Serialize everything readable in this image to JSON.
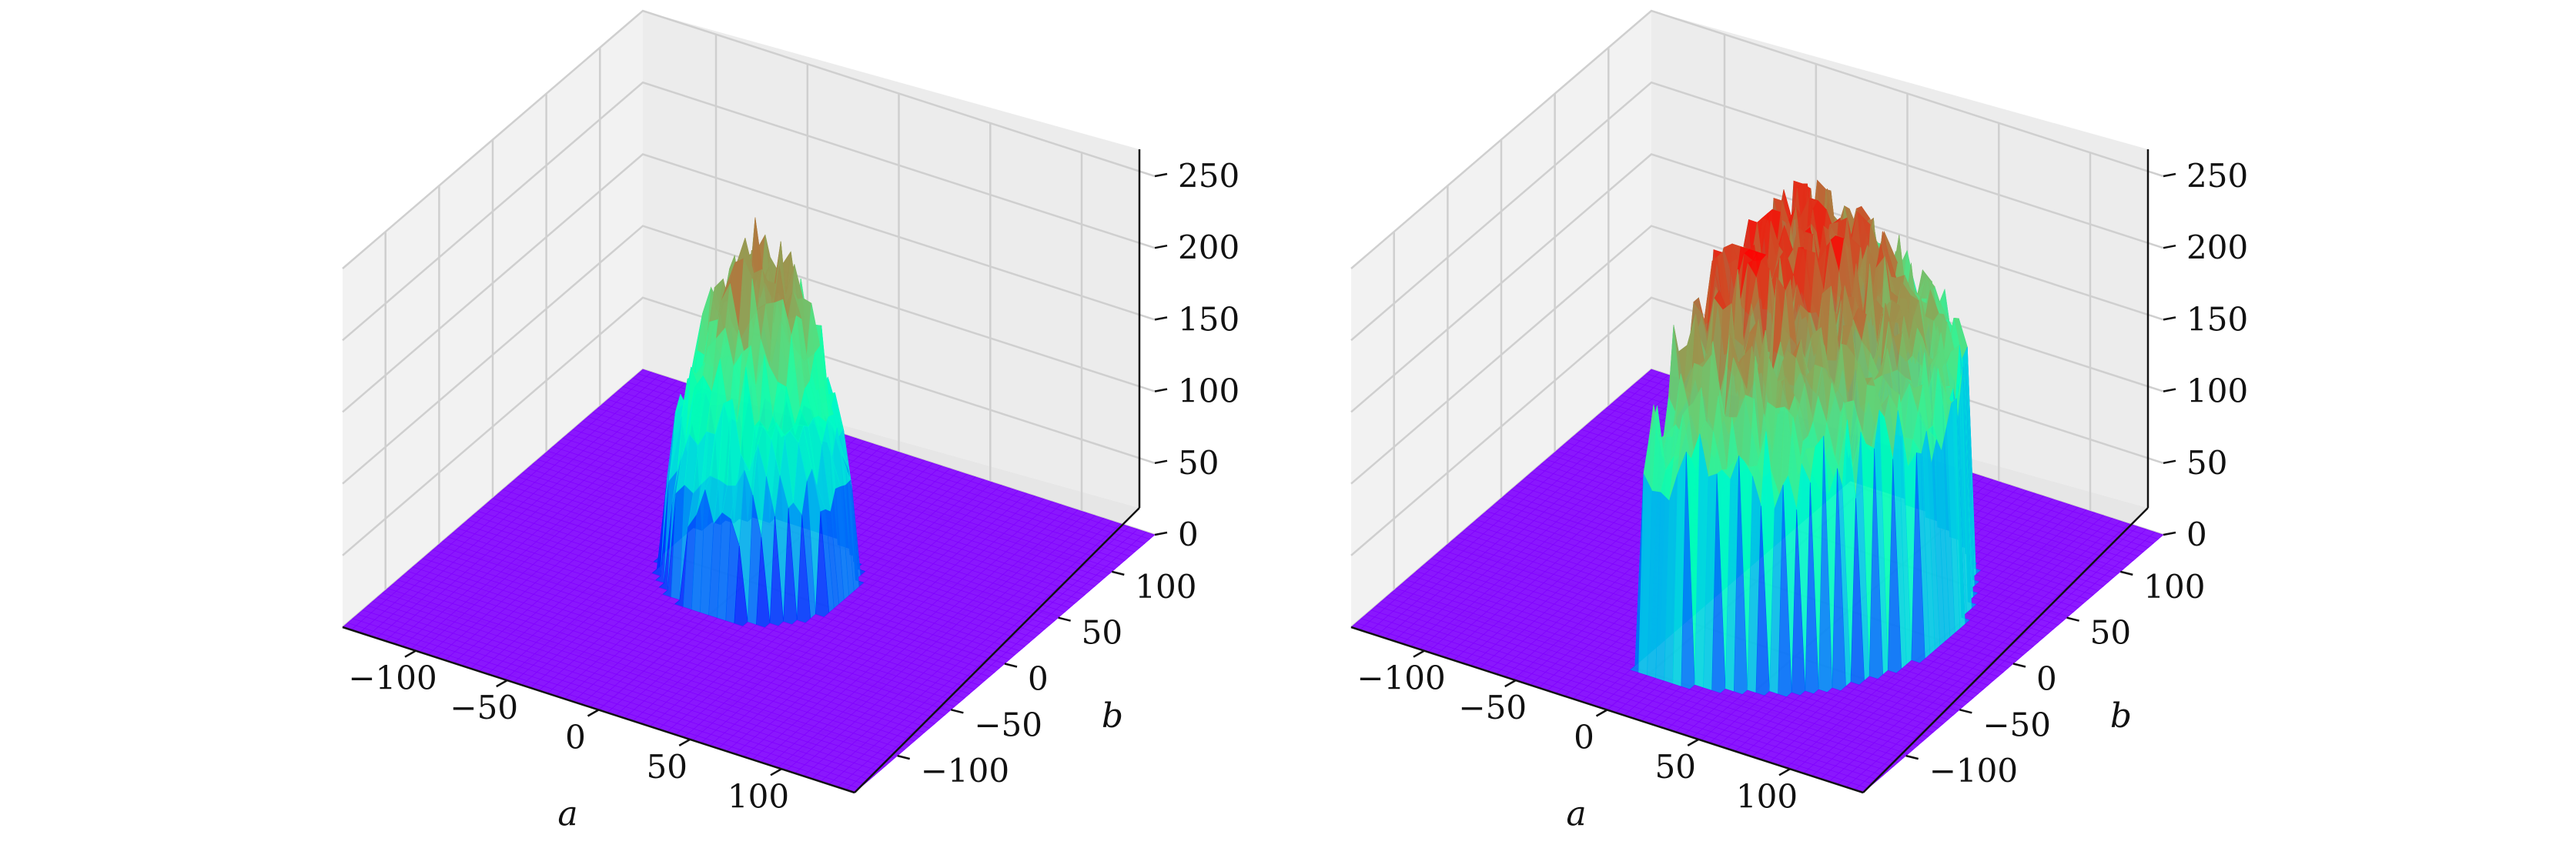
{
  "chart_data": [
    {
      "type": "surface",
      "title": "",
      "xlabel": "a",
      "ylabel": "b",
      "zlabel": "",
      "xlim": [
        -140,
        140
      ],
      "ylim": [
        -140,
        140
      ],
      "zlim": [
        0,
        250
      ],
      "xticks": [
        "−100",
        "−50",
        "0",
        "50",
        "100"
      ],
      "yticks": [
        "−100",
        "−50",
        "0",
        "50",
        "100"
      ],
      "zticks": [
        "0",
        "50",
        "100",
        "150",
        "200",
        "250"
      ],
      "colormap": "rainbow",
      "base_color": "#8000ff",
      "surface": {
        "shape": "disc",
        "center": [
          0,
          10
        ],
        "radius": 45,
        "peak_value": 215,
        "edge_value": 60,
        "outside_value": 0
      }
    },
    {
      "type": "surface",
      "title": "",
      "xlabel": "a",
      "ylabel": "b",
      "zlabel": "",
      "xlim": [
        -140,
        140
      ],
      "ylim": [
        -140,
        140
      ],
      "zlim": [
        0,
        250
      ],
      "xticks": [
        "−100",
        "−50",
        "0",
        "50",
        "100"
      ],
      "yticks": [
        "−100",
        "−50",
        "0",
        "50",
        "100"
      ],
      "zticks": [
        "0",
        "50",
        "100",
        "150",
        "200",
        "250"
      ],
      "colormap": "rainbow",
      "base_color": "#8000ff",
      "surface": {
        "shape": "half-disc",
        "center": [
          0,
          0
        ],
        "radius": 100,
        "peak_value": 240,
        "edge_value": 150,
        "outside_value": 0
      }
    }
  ]
}
